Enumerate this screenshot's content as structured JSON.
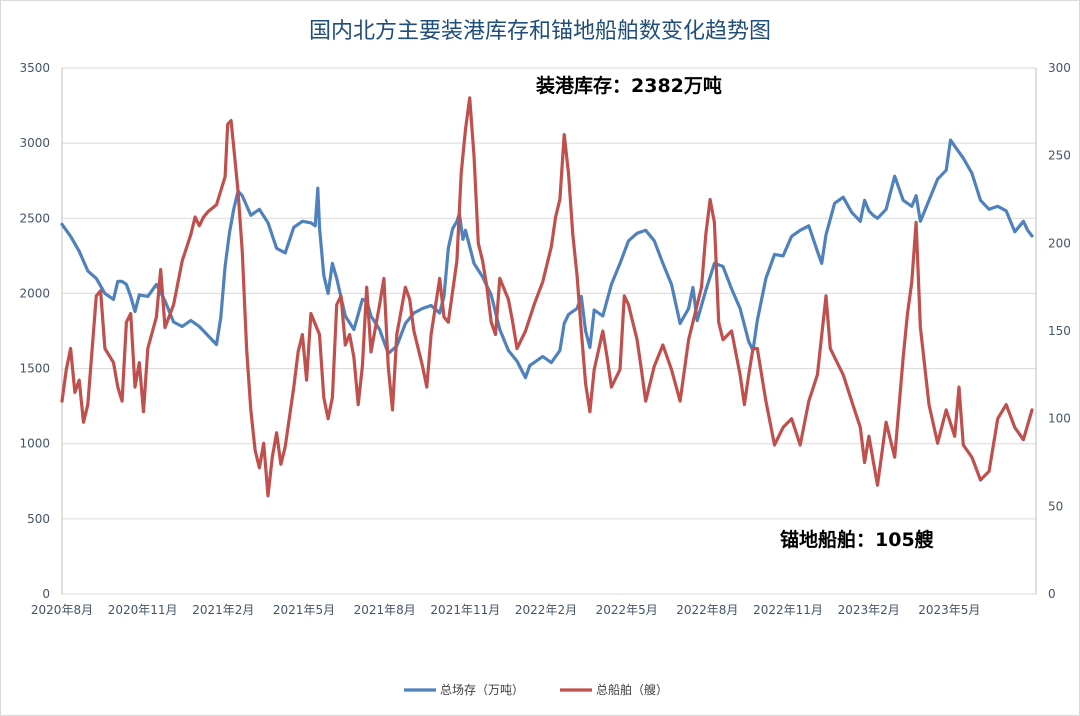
{
  "chart_data": {
    "type": "line",
    "title": "国内北方主要装港库存和锚地船舶数变化趋势图",
    "grid": true,
    "legend_position": "bottom",
    "y_left": {
      "min": 0,
      "max": 3500,
      "ticks": [
        "0",
        "500",
        "1000",
        "1500",
        "2000",
        "2500",
        "3000",
        "3500"
      ]
    },
    "y_right": {
      "min": 0,
      "max": 300,
      "ticks": [
        "0",
        "50",
        "100",
        "150",
        "200",
        "250",
        "300"
      ]
    },
    "x_ticks": [
      "2020年8月",
      "2020年11月",
      "2021年2月",
      "2021年5月",
      "2021年8月",
      "2021年11月",
      "2022年2月",
      "2022年5月",
      "2022年8月",
      "2022年11月",
      "2023年2月",
      "2023年5月"
    ],
    "annotations": {
      "inventory": "装港库存：2382万吨",
      "ships": "锚地船舶：105艘"
    },
    "series": [
      {
        "name": "总场存（万吨）",
        "axis": "left",
        "color": "#4f81bd",
        "points": [
          [
            0,
            2460
          ],
          [
            1,
            2380
          ],
          [
            2,
            2280
          ],
          [
            3,
            2150
          ],
          [
            4,
            2100
          ],
          [
            5,
            2000
          ],
          [
            6,
            1960
          ],
          [
            6.5,
            2080
          ],
          [
            7,
            2080
          ],
          [
            7.5,
            2060
          ],
          [
            8,
            1980
          ],
          [
            8.5,
            1880
          ],
          [
            9,
            1990
          ],
          [
            10,
            1980
          ],
          [
            11,
            2060
          ],
          [
            12,
            1950
          ],
          [
            13,
            1810
          ],
          [
            14,
            1780
          ],
          [
            15,
            1820
          ],
          [
            16,
            1780
          ],
          [
            17,
            1720
          ],
          [
            18,
            1660
          ],
          [
            18.5,
            1840
          ],
          [
            19,
            2180
          ],
          [
            19.5,
            2400
          ],
          [
            20,
            2560
          ],
          [
            20.5,
            2680
          ],
          [
            21,
            2650
          ],
          [
            22,
            2520
          ],
          [
            23,
            2560
          ],
          [
            24,
            2470
          ],
          [
            25,
            2300
          ],
          [
            26,
            2270
          ],
          [
            27,
            2440
          ],
          [
            28,
            2480
          ],
          [
            29,
            2470
          ],
          [
            29.5,
            2450
          ],
          [
            29.8,
            2700
          ],
          [
            30,
            2440
          ],
          [
            30.5,
            2120
          ],
          [
            31,
            2000
          ],
          [
            31.5,
            2200
          ],
          [
            32,
            2100
          ],
          [
            33,
            1850
          ],
          [
            34,
            1760
          ],
          [
            35,
            1960
          ],
          [
            35.5,
            1950
          ],
          [
            36,
            1850
          ],
          [
            37,
            1760
          ],
          [
            38,
            1600
          ],
          [
            39,
            1650
          ],
          [
            40,
            1800
          ],
          [
            41,
            1870
          ],
          [
            42,
            1900
          ],
          [
            43,
            1920
          ],
          [
            44,
            1870
          ],
          [
            44.5,
            1980
          ],
          [
            45,
            2300
          ],
          [
            45.5,
            2430
          ],
          [
            46,
            2480
          ],
          [
            46.3,
            2530
          ],
          [
            46.7,
            2360
          ],
          [
            47,
            2420
          ],
          [
            48,
            2200
          ],
          [
            49,
            2110
          ],
          [
            50,
            1990
          ],
          [
            51,
            1760
          ],
          [
            52,
            1620
          ],
          [
            53,
            1550
          ],
          [
            54,
            1440
          ],
          [
            54.5,
            1520
          ],
          [
            55,
            1540
          ],
          [
            56,
            1580
          ],
          [
            57,
            1540
          ],
          [
            58,
            1620
          ],
          [
            58.5,
            1800
          ],
          [
            59,
            1860
          ],
          [
            60,
            1900
          ],
          [
            60.5,
            1980
          ],
          [
            61,
            1750
          ],
          [
            61.5,
            1640
          ],
          [
            62,
            1890
          ],
          [
            63,
            1850
          ],
          [
            64,
            2060
          ],
          [
            65,
            2200
          ],
          [
            66,
            2350
          ],
          [
            67,
            2400
          ],
          [
            68,
            2420
          ],
          [
            69,
            2350
          ],
          [
            70,
            2200
          ],
          [
            71,
            2060
          ],
          [
            72,
            1800
          ],
          [
            73,
            1900
          ],
          [
            73.5,
            2040
          ],
          [
            74,
            1820
          ],
          [
            75,
            2020
          ],
          [
            76,
            2200
          ],
          [
            77,
            2180
          ],
          [
            78,
            2030
          ],
          [
            79,
            1900
          ],
          [
            80,
            1680
          ],
          [
            80.5,
            1620
          ],
          [
            81,
            1820
          ],
          [
            82,
            2100
          ],
          [
            83,
            2260
          ],
          [
            84,
            2250
          ],
          [
            85,
            2380
          ],
          [
            86,
            2420
          ],
          [
            87,
            2450
          ],
          [
            88,
            2280
          ],
          [
            88.5,
            2200
          ],
          [
            89,
            2390
          ],
          [
            90,
            2600
          ],
          [
            91,
            2640
          ],
          [
            92,
            2540
          ],
          [
            93,
            2480
          ],
          [
            93.5,
            2620
          ],
          [
            94,
            2550
          ],
          [
            94.5,
            2520
          ],
          [
            95,
            2500
          ],
          [
            96,
            2560
          ],
          [
            97,
            2780
          ],
          [
            98,
            2620
          ],
          [
            99,
            2580
          ],
          [
            99.5,
            2650
          ],
          [
            100,
            2480
          ],
          [
            101,
            2620
          ],
          [
            102,
            2760
          ],
          [
            103,
            2820
          ],
          [
            103.5,
            3020
          ],
          [
            104,
            2980
          ],
          [
            105,
            2900
          ],
          [
            106,
            2800
          ],
          [
            107,
            2620
          ],
          [
            108,
            2560
          ],
          [
            109,
            2580
          ],
          [
            110,
            2550
          ],
          [
            111,
            2410
          ],
          [
            112,
            2480
          ],
          [
            112.5,
            2420
          ],
          [
            113,
            2382
          ]
        ]
      },
      {
        "name": "总船舶（艘）",
        "axis": "right",
        "color": "#c0504d",
        "points": [
          [
            0,
            110
          ],
          [
            0.5,
            128
          ],
          [
            1,
            140
          ],
          [
            1.5,
            115
          ],
          [
            2,
            122
          ],
          [
            2.5,
            98
          ],
          [
            3,
            108
          ],
          [
            4,
            170
          ],
          [
            4.5,
            173
          ],
          [
            5,
            140
          ],
          [
            6,
            132
          ],
          [
            6.5,
            118
          ],
          [
            7,
            110
          ],
          [
            7.5,
            155
          ],
          [
            8,
            160
          ],
          [
            8.5,
            118
          ],
          [
            9,
            132
          ],
          [
            9.5,
            104
          ],
          [
            10,
            140
          ],
          [
            11,
            158
          ],
          [
            11.5,
            185
          ],
          [
            12,
            152
          ],
          [
            13,
            165
          ],
          [
            14,
            190
          ],
          [
            15,
            205
          ],
          [
            15.5,
            215
          ],
          [
            16,
            210
          ],
          [
            16.5,
            215
          ],
          [
            17,
            218
          ],
          [
            18,
            222
          ],
          [
            19,
            238
          ],
          [
            19.3,
            268
          ],
          [
            19.7,
            270
          ],
          [
            20,
            255
          ],
          [
            20.5,
            230
          ],
          [
            21,
            195
          ],
          [
            21.5,
            140
          ],
          [
            22,
            105
          ],
          [
            22.5,
            82
          ],
          [
            23,
            72
          ],
          [
            23.5,
            86
          ],
          [
            24,
            56
          ],
          [
            24.5,
            78
          ],
          [
            25,
            92
          ],
          [
            25.5,
            74
          ],
          [
            26,
            84
          ],
          [
            27,
            118
          ],
          [
            27.5,
            138
          ],
          [
            28,
            148
          ],
          [
            28.5,
            122
          ],
          [
            29,
            160
          ],
          [
            30,
            148
          ],
          [
            30.5,
            112
          ],
          [
            31,
            100
          ],
          [
            31.5,
            112
          ],
          [
            32,
            165
          ],
          [
            32.5,
            170
          ],
          [
            33,
            142
          ],
          [
            33.5,
            148
          ],
          [
            34,
            135
          ],
          [
            34.5,
            108
          ],
          [
            35,
            130
          ],
          [
            35.5,
            175
          ],
          [
            36,
            138
          ],
          [
            37,
            165
          ],
          [
            37.5,
            180
          ],
          [
            38,
            130
          ],
          [
            38.5,
            105
          ],
          [
            39,
            148
          ],
          [
            40,
            175
          ],
          [
            40.5,
            168
          ],
          [
            41,
            150
          ],
          [
            42,
            130
          ],
          [
            42.5,
            118
          ],
          [
            43,
            148
          ],
          [
            44,
            180
          ],
          [
            44.5,
            158
          ],
          [
            45,
            155
          ],
          [
            46,
            190
          ],
          [
            46.5,
            240
          ],
          [
            47,
            265
          ],
          [
            47.5,
            283
          ],
          [
            48,
            250
          ],
          [
            48.5,
            200
          ],
          [
            49,
            190
          ],
          [
            49.5,
            175
          ],
          [
            50,
            155
          ],
          [
            50.5,
            148
          ],
          [
            51,
            180
          ],
          [
            52,
            168
          ],
          [
            52.5,
            155
          ],
          [
            53,
            140
          ],
          [
            54,
            150
          ],
          [
            55,
            165
          ],
          [
            56,
            178
          ],
          [
            57,
            198
          ],
          [
            57.5,
            215
          ],
          [
            58,
            225
          ],
          [
            58.5,
            262
          ],
          [
            59,
            240
          ],
          [
            59.5,
            205
          ],
          [
            60,
            182
          ],
          [
            60.5,
            150
          ],
          [
            61,
            120
          ],
          [
            61.5,
            104
          ],
          [
            62,
            128
          ],
          [
            63,
            150
          ],
          [
            63.5,
            135
          ],
          [
            64,
            118
          ],
          [
            65,
            128
          ],
          [
            65.5,
            170
          ],
          [
            66,
            165
          ],
          [
            67,
            145
          ],
          [
            67.5,
            128
          ],
          [
            68,
            110
          ],
          [
            69,
            130
          ],
          [
            70,
            142
          ],
          [
            71,
            128
          ],
          [
            72,
            110
          ],
          [
            73,
            145
          ],
          [
            74,
            165
          ],
          [
            74.5,
            175
          ],
          [
            75,
            205
          ],
          [
            75.5,
            225
          ],
          [
            76,
            212
          ],
          [
            76.5,
            155
          ],
          [
            77,
            145
          ],
          [
            78,
            150
          ],
          [
            79,
            125
          ],
          [
            79.5,
            108
          ],
          [
            80,
            125
          ],
          [
            80.5,
            140
          ],
          [
            81,
            140
          ],
          [
            81.5,
            125
          ],
          [
            82,
            110
          ],
          [
            83,
            85
          ],
          [
            84,
            95
          ],
          [
            85,
            100
          ],
          [
            86,
            85
          ],
          [
            87,
            110
          ],
          [
            88,
            125
          ],
          [
            89,
            170
          ],
          [
            89.5,
            140
          ],
          [
            90,
            135
          ],
          [
            91,
            125
          ],
          [
            92,
            110
          ],
          [
            93,
            95
          ],
          [
            93.5,
            75
          ],
          [
            94,
            90
          ],
          [
            95,
            62
          ],
          [
            96,
            98
          ],
          [
            97,
            78
          ],
          [
            98,
            135
          ],
          [
            98.5,
            160
          ],
          [
            99,
            178
          ],
          [
            99.5,
            212
          ],
          [
            100,
            152
          ],
          [
            100.5,
            130
          ],
          [
            101,
            108
          ],
          [
            102,
            86
          ],
          [
            103,
            105
          ],
          [
            104,
            90
          ],
          [
            104.5,
            118
          ],
          [
            105,
            85
          ],
          [
            106,
            78
          ],
          [
            107,
            65
          ],
          [
            108,
            70
          ],
          [
            109,
            100
          ],
          [
            110,
            108
          ],
          [
            111,
            95
          ],
          [
            112,
            88
          ],
          [
            113,
            105
          ]
        ]
      }
    ]
  }
}
